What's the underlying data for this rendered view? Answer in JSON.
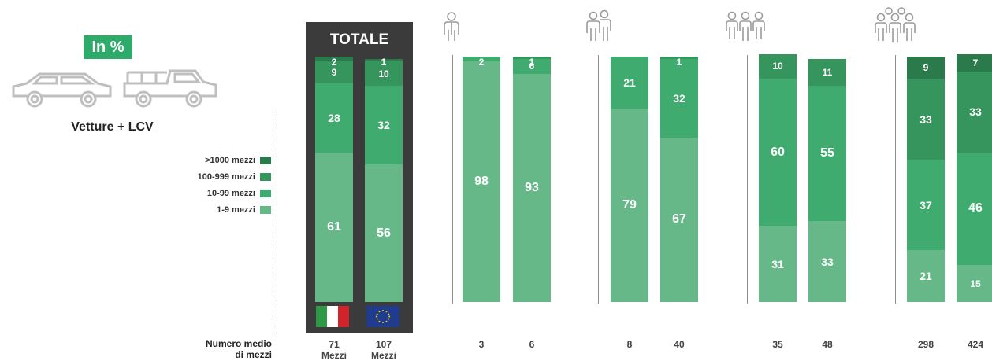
{
  "header": {
    "badge": "In %",
    "vehicle_label": "Vetture + LCV",
    "totale_title": "TOTALE"
  },
  "colors": {
    "seg_1000_plus": "#2a7a4b",
    "seg_100_999": "#36955d",
    "seg_10_99": "#3fab6e",
    "seg_1_9": "#66b888",
    "badge": "#2eaa6a",
    "totale_bg": "#3b3b3b"
  },
  "legend": [
    {
      "label": ">1000 mezzi",
      "key": "seg_1000_plus"
    },
    {
      "label": "100-999 mezzi",
      "key": "seg_100_999"
    },
    {
      "label": "10-99 mezzi",
      "key": "seg_10_99"
    },
    {
      "label": "1-9 mezzi",
      "key": "seg_1_9"
    }
  ],
  "footer": {
    "avg_heading_line1": "Numero medio",
    "avg_heading_line2": "di mezzi"
  },
  "icons": [
    "italy-flag-icon",
    "eu-flag-icon",
    "person-icon",
    "small-group-icon",
    "group-icon",
    "large-group-icon",
    "car-icon",
    "pickup-truck-icon"
  ],
  "chart_data": {
    "type": "bar",
    "stacked": true,
    "normalized_percent": true,
    "series_order_bottom_to_top": [
      "1-9 mezzi",
      "10-99 mezzi",
      "100-999 mezzi",
      ">1000 mezzi"
    ],
    "series": [
      {
        "name": "1-9 mezzi",
        "values": [
          61,
          56,
          98,
          93,
          79,
          67,
          31,
          33,
          21,
          15
        ]
      },
      {
        "name": "10-99 mezzi",
        "values": [
          28,
          32,
          2,
          6,
          21,
          32,
          60,
          55,
          37,
          46
        ]
      },
      {
        "name": "100-999 mezzi",
        "values": [
          9,
          10,
          0,
          1,
          0,
          1,
          10,
          11,
          33,
          33
        ]
      },
      {
        "name": ">1000 mezzi",
        "values": [
          2,
          1,
          0,
          0,
          0,
          0,
          0,
          0,
          9,
          7
        ]
      }
    ],
    "avg_vehicles": [
      "71",
      "107",
      "3",
      "6",
      "8",
      "40",
      "35",
      "48",
      "298",
      "424"
    ],
    "avg_suffix": [
      "Mezzi",
      "Mezzi",
      "",
      "",
      "",
      "",
      "",
      "",
      "",
      ""
    ],
    "group_icons": [
      "flags",
      "person-icon",
      "small-group-icon",
      "group-icon",
      "large-group-icon"
    ],
    "ylim": [
      0,
      100
    ]
  }
}
